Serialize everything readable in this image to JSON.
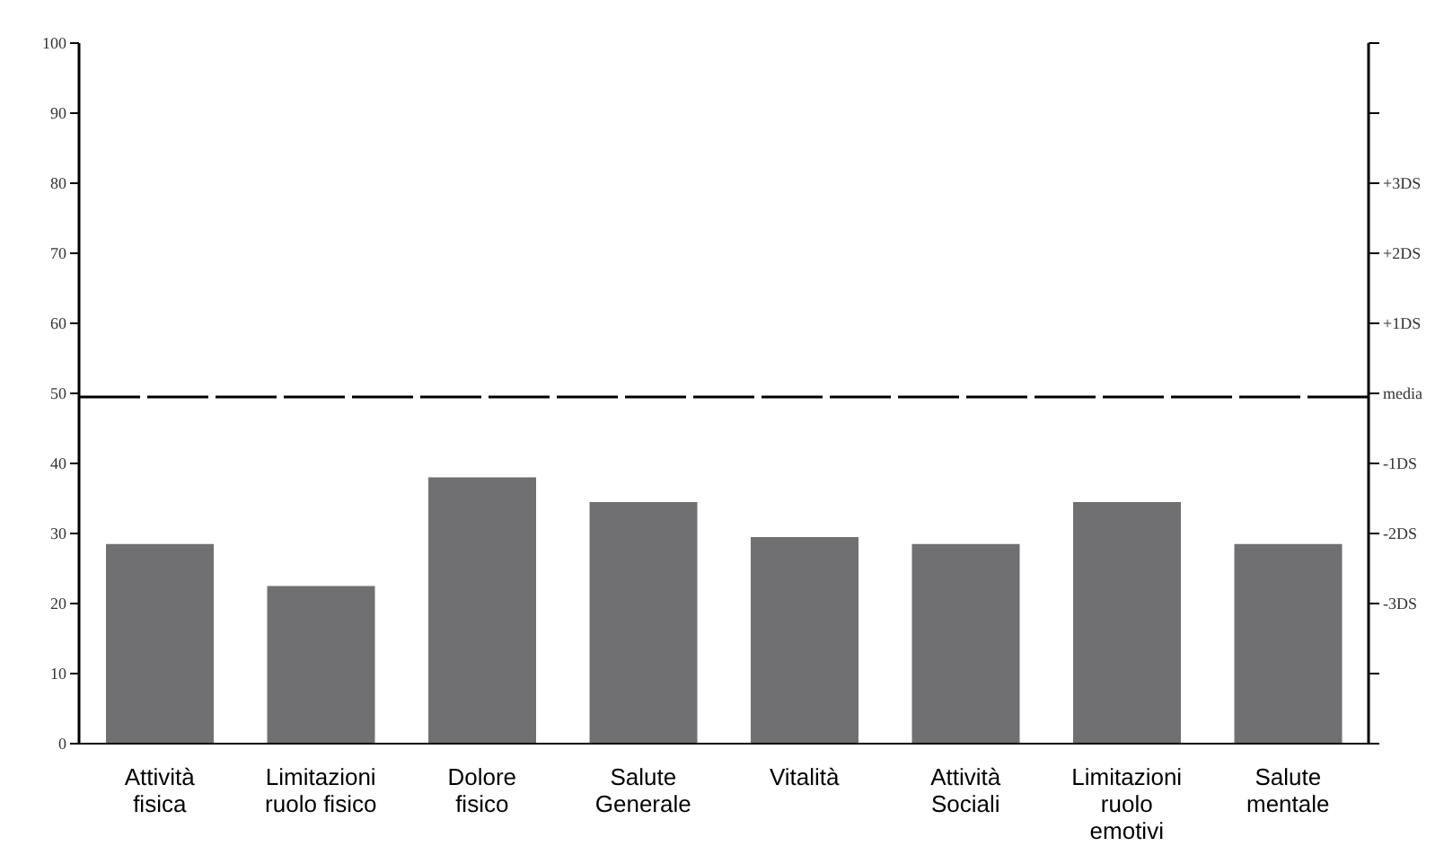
{
  "chart_data": {
    "type": "bar",
    "categories": [
      "Attività fisica",
      "Limitazioni ruolo fisico",
      "Dolore fisico",
      "Salute Generale",
      "Vitalità",
      "Attività Sociali",
      "Limitazioni ruolo emotivi",
      "Salute mentale"
    ],
    "values": [
      28.5,
      22.5,
      38,
      34.5,
      29.5,
      28.5,
      34.5,
      28.5
    ],
    "color": "#707072",
    "ylim": [
      0,
      100
    ],
    "yticks": [
      0,
      10,
      20,
      30,
      40,
      50,
      60,
      70,
      80,
      90,
      100
    ],
    "y2lim": [
      -5,
      5
    ],
    "y2ticks": [
      {
        "value": -5,
        "label": null
      },
      {
        "value": -4,
        "label": null
      },
      {
        "value": -3,
        "label": "-3DS"
      },
      {
        "value": -2,
        "label": "-2DS"
      },
      {
        "value": -1,
        "label": "-1DS"
      },
      {
        "value": 0,
        "label": "media"
      },
      {
        "value": 1,
        "label": "+1DS"
      },
      {
        "value": 2,
        "label": "+2DS"
      },
      {
        "value": 3,
        "label": "+3DS"
      },
      {
        "value": 4,
        "label": null
      },
      {
        "value": 5,
        "label": null
      }
    ],
    "ref_lines": [
      {
        "axis": "y",
        "value": 49.5,
        "color": "#000000",
        "line_style": "dashed"
      }
    ],
    "grid": false,
    "legend": false
  }
}
